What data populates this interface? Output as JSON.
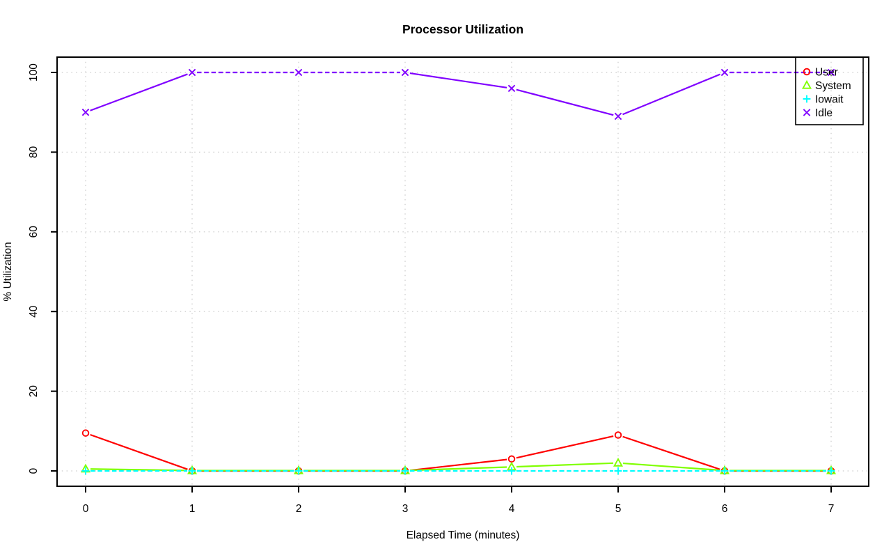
{
  "chart_data": {
    "type": "line",
    "title": "Processor Utilization",
    "xlabel": "Elapsed Time (minutes)",
    "ylabel": "% Utilization",
    "x": [
      0,
      1,
      2,
      3,
      4,
      5,
      6,
      7
    ],
    "x_ticks": [
      "0",
      "1",
      "2",
      "3",
      "4",
      "5",
      "6",
      "7"
    ],
    "y_ticks": [
      "0",
      "20",
      "40",
      "60",
      "80",
      "100"
    ],
    "y_tick_values": [
      0,
      20,
      40,
      60,
      80,
      100
    ],
    "xlim": [
      0,
      7
    ],
    "ylim": [
      0,
      100
    ],
    "grid": true,
    "grid_style": "dotted",
    "legend_position": "top-right",
    "series": [
      {
        "name": "User",
        "color": "#FF0000",
        "marker": "circle",
        "line_style": "solid",
        "values": [
          9.5,
          0,
          0,
          0,
          3,
          9,
          0,
          0
        ]
      },
      {
        "name": "System",
        "color": "#80FF00",
        "marker": "triangle",
        "line_style": "solid",
        "values": [
          0.5,
          0.1,
          0.1,
          0.1,
          1,
          2,
          0.1,
          0.1
        ]
      },
      {
        "name": "Iowait",
        "color": "#00FFFF",
        "marker": "plus",
        "line_style": "dashed",
        "values": [
          0,
          0,
          0,
          0,
          0,
          0,
          0,
          0
        ]
      },
      {
        "name": "Idle",
        "color": "#8000FF",
        "marker": "x",
        "line_style": "dashed-when-flat",
        "values": [
          90,
          100,
          100,
          100,
          96,
          89,
          100,
          100
        ]
      }
    ],
    "colors": {
      "grid": "#c9c9c9",
      "axis": "#000000",
      "background": "#ffffff"
    }
  }
}
